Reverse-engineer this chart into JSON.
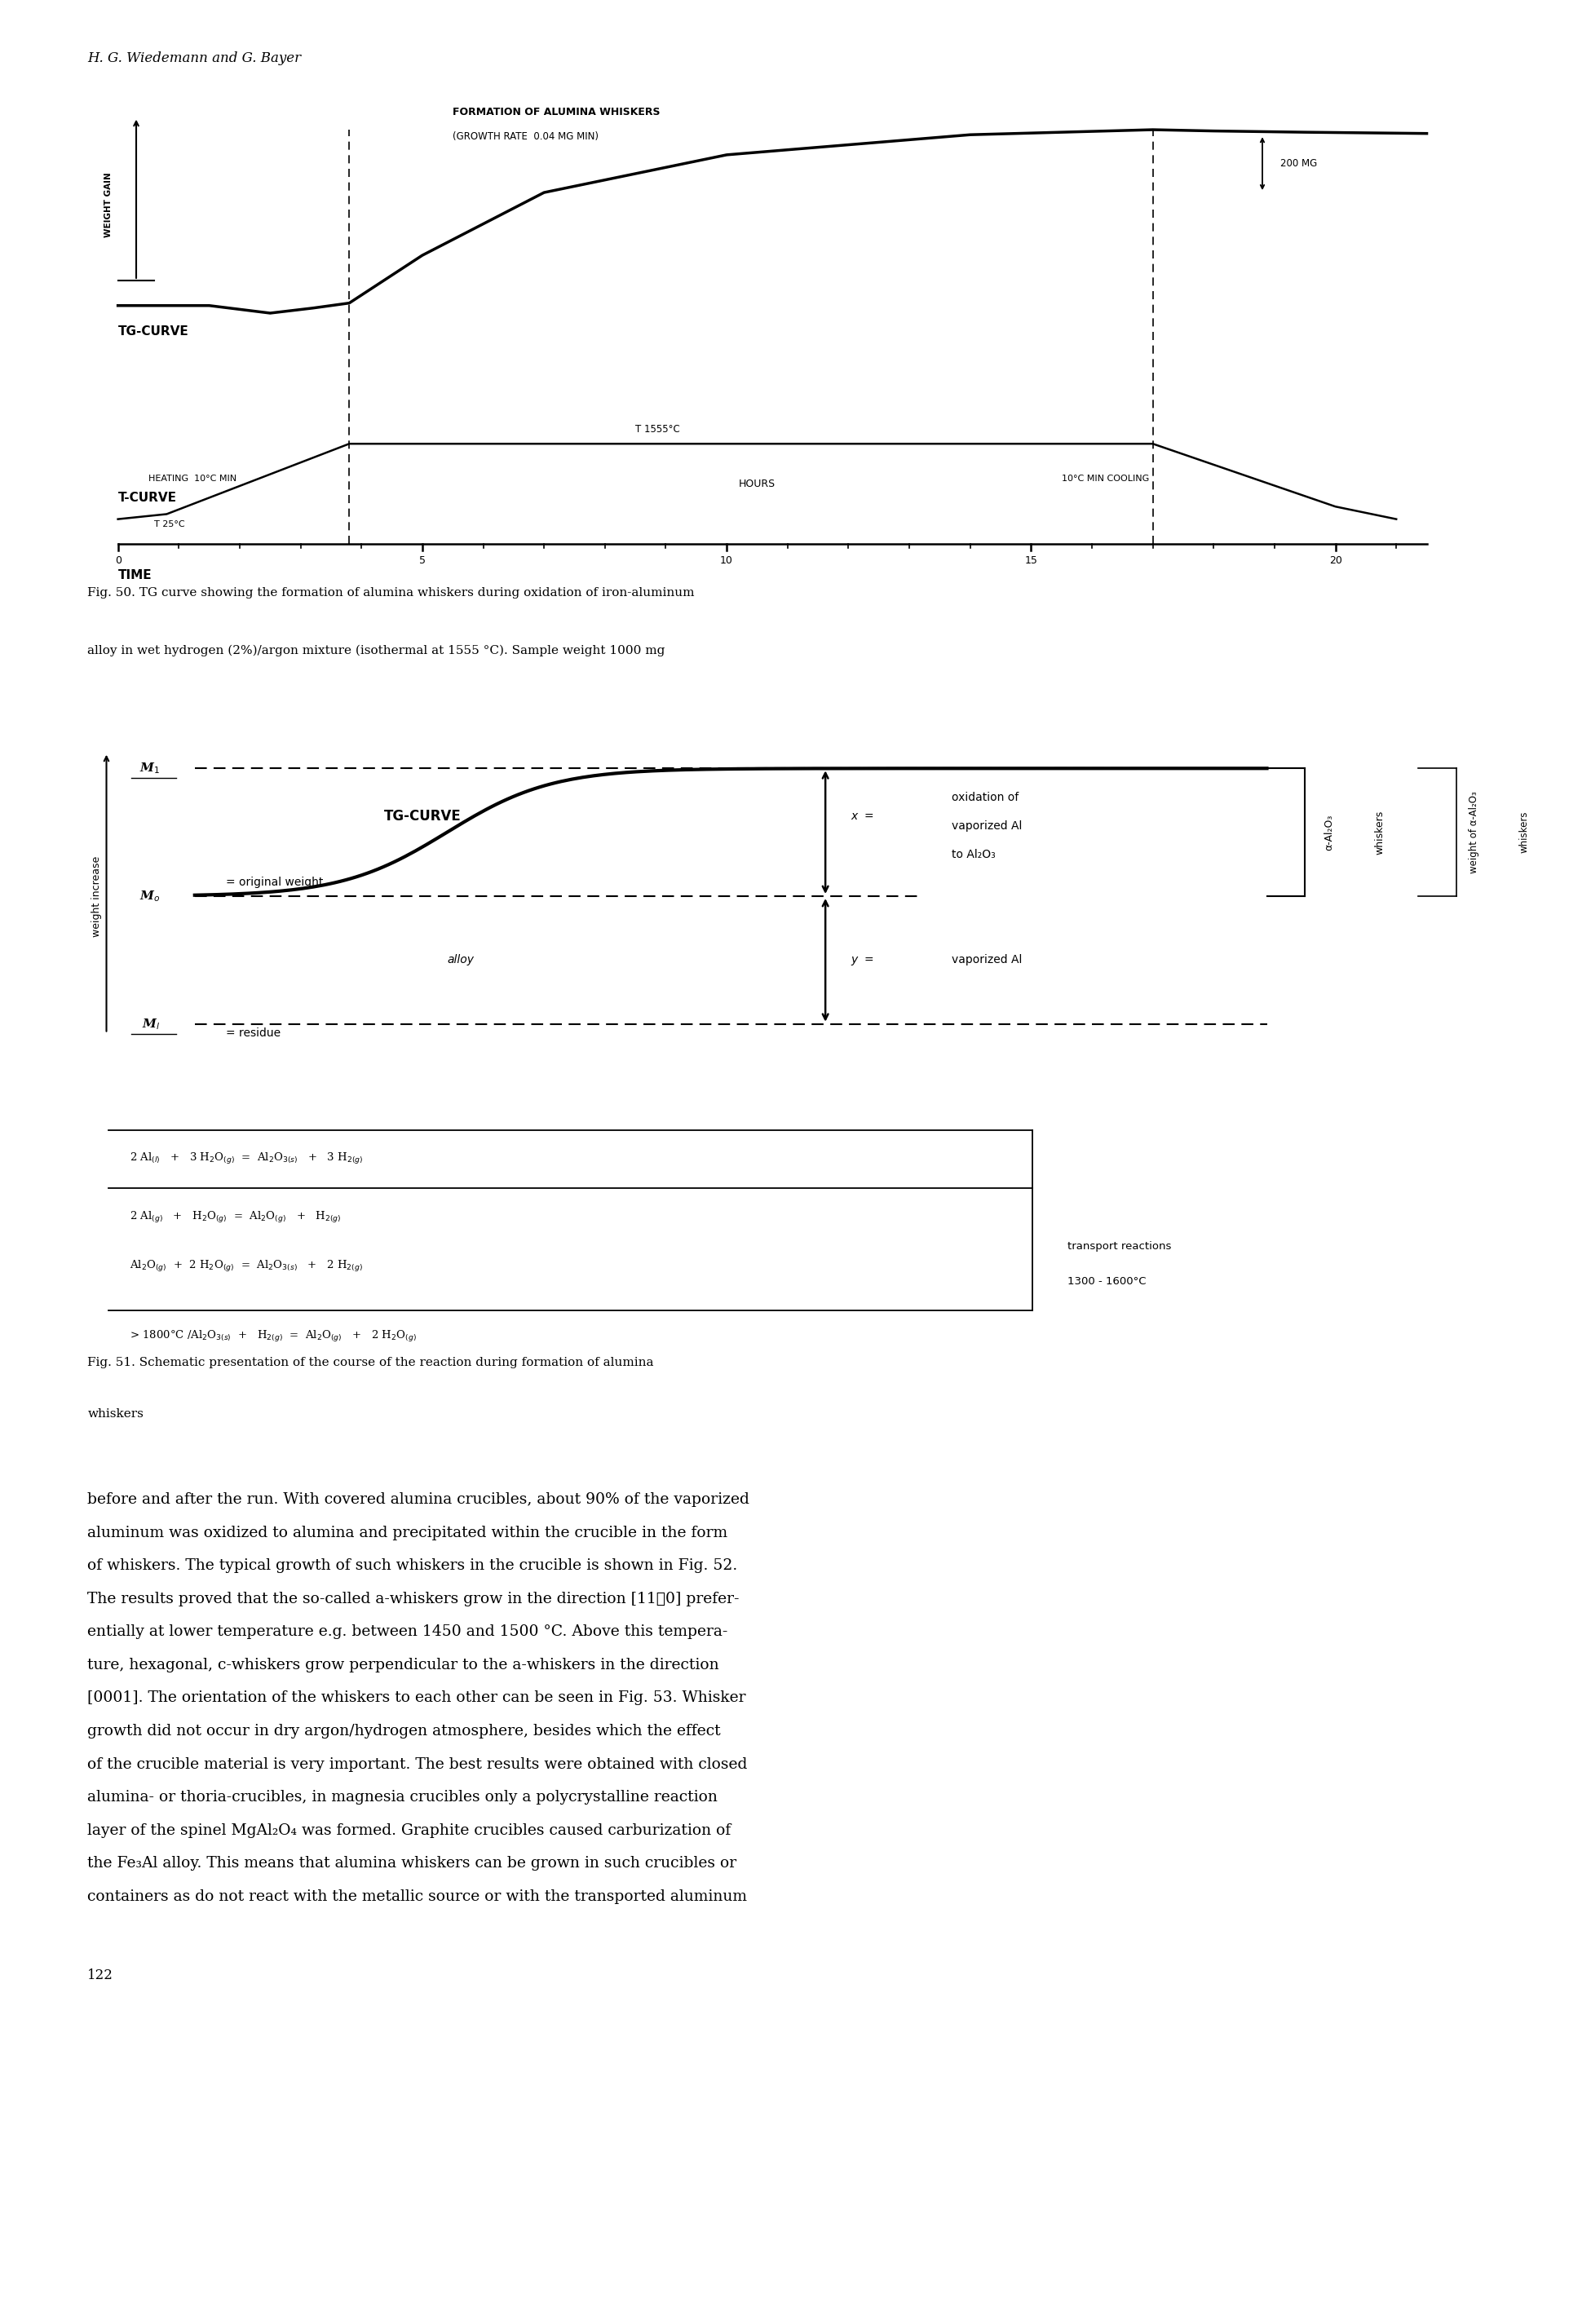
{
  "page_header": "H. G. Wiedemann and G. Bayer",
  "fig50_caption_line1": "Fig. 50. TG curve showing the formation of alumina whiskers during oxidation of iron-aluminum",
  "fig50_caption_line2": "alloy in wet hydrogen (2%)/argon mixture (isothermal at 1555 °C). Sample weight 1000 mg",
  "fig51_caption_line1": "Fig. 51. Schematic presentation of the course of the reaction during formation of alumina",
  "fig51_caption_line2": "whiskers",
  "page_number": "122",
  "body_text": [
    "before and after the run. With covered alumina crucibles, about 90% of the vaporized",
    "aluminum was oxidized to alumina and precipitated within the crucible in the form",
    "of whiskers. The typical growth of such whiskers in the crucible is shown in Fig. 52.",
    "The results proved that the so-called a-whiskers grow in the direction [11͞0] prefer-",
    "entially at lower temperature e.g. between 1450 and 1500 °C. Above this tempera-",
    "ture, hexagonal, c-whiskers grow perpendicular to the a-whiskers in the direction",
    "[0001]. The orientation of the whiskers to each other can be seen in Fig. 53. Whisker",
    "growth did not occur in dry argon/hydrogen atmosphere, besides which the effect",
    "of the crucible material is very important. The best results were obtained with closed",
    "alumina- or thoria-crucibles, in magnesia crucibles only a polycrystalline reaction",
    "layer of the spinel MgAl₂O₄ was formed. Graphite crucibles caused carburization of",
    "the Fe₃Al alloy. This means that alumina whiskers can be grown in such crucibles or",
    "containers as do not react with the metallic source or with the transported aluminum"
  ]
}
